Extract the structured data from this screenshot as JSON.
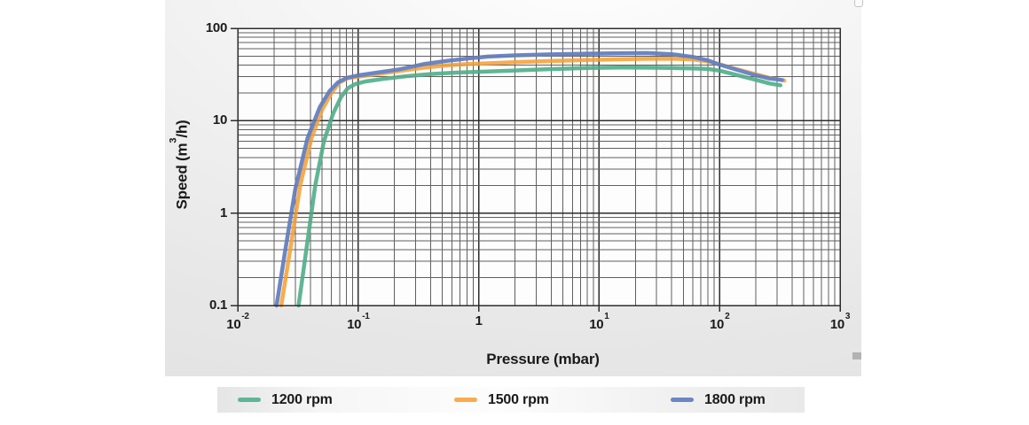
{
  "page": {
    "background": "#ffffff"
  },
  "chart_data": {
    "type": "line",
    "title": "",
    "xlabel": "Pressure (mbar)",
    "ylabel": "Speed (m³/h)",
    "ylabel_parts": {
      "pre": "Speed (m",
      "sup": "3",
      "post": "/h)"
    },
    "x_scale": "log",
    "y_scale": "log",
    "xlim": [
      0.01,
      1000
    ],
    "ylim": [
      0.1,
      100
    ],
    "grid": "log major and minor, dark gray, boxed frame",
    "legend_position": "bottom strip",
    "x_ticks": [
      {
        "base": "10",
        "sup": "-2",
        "value": 0.01
      },
      {
        "base": "10",
        "sup": "-1",
        "value": 0.1
      },
      {
        "base": "1",
        "sup": "",
        "value": 1
      },
      {
        "base": "10",
        "sup": "1",
        "value": 10
      },
      {
        "base": "10",
        "sup": "2",
        "value": 100
      },
      {
        "base": "10",
        "sup": "3",
        "value": 1000
      }
    ],
    "y_ticks": [
      {
        "label": "100",
        "value": 100
      },
      {
        "label": "10",
        "value": 10
      },
      {
        "label": "1",
        "value": 1
      },
      {
        "label": "0.1",
        "value": 0.1
      }
    ],
    "series": [
      {
        "name": "1200 rpm",
        "color": "#5FB694",
        "points": [
          [
            0.032,
            0.1
          ],
          [
            0.038,
            0.5
          ],
          [
            0.044,
            2
          ],
          [
            0.052,
            6
          ],
          [
            0.062,
            12
          ],
          [
            0.072,
            18
          ],
          [
            0.082,
            22.5
          ],
          [
            0.095,
            25
          ],
          [
            0.115,
            26.6
          ],
          [
            0.16,
            28.3
          ],
          [
            0.25,
            30.3
          ],
          [
            0.4,
            32
          ],
          [
            0.65,
            33.2
          ],
          [
            1,
            33.8
          ],
          [
            2,
            35
          ],
          [
            4,
            36.2
          ],
          [
            8,
            37.2
          ],
          [
            15,
            37.6
          ],
          [
            25,
            37.5
          ],
          [
            40,
            37.2
          ],
          [
            60,
            36.9
          ],
          [
            80,
            36.3
          ],
          [
            100,
            34.8
          ],
          [
            140,
            31.2
          ],
          [
            200,
            27.7
          ],
          [
            260,
            25.3
          ],
          [
            320,
            24.2
          ]
        ]
      },
      {
        "name": "1500 rpm",
        "color": "#F8AC4D",
        "points": [
          [
            0.023,
            0.1
          ],
          [
            0.028,
            0.5
          ],
          [
            0.033,
            2
          ],
          [
            0.041,
            6.5
          ],
          [
            0.05,
            13
          ],
          [
            0.06,
            20
          ],
          [
            0.07,
            26
          ],
          [
            0.082,
            28.8
          ],
          [
            0.1,
            30
          ],
          [
            0.14,
            31.8
          ],
          [
            0.22,
            34.5
          ],
          [
            0.35,
            37.5
          ],
          [
            0.55,
            39.8
          ],
          [
            0.8,
            41
          ],
          [
            1.2,
            41.8
          ],
          [
            2,
            43
          ],
          [
            4,
            44.3
          ],
          [
            8,
            45.5
          ],
          [
            15,
            46.3
          ],
          [
            25,
            46.8
          ],
          [
            40,
            47
          ],
          [
            60,
            46.2
          ],
          [
            80,
            43.8
          ],
          [
            100,
            40.8
          ],
          [
            140,
            36
          ],
          [
            200,
            31.8
          ],
          [
            260,
            29
          ],
          [
            345,
            27.2
          ]
        ]
      },
      {
        "name": "1800 rpm",
        "color": "#6C86C3",
        "points": [
          [
            0.021,
            0.1
          ],
          [
            0.025,
            0.42
          ],
          [
            0.03,
            1.8
          ],
          [
            0.038,
            6.5
          ],
          [
            0.048,
            14
          ],
          [
            0.058,
            21
          ],
          [
            0.068,
            26
          ],
          [
            0.08,
            29
          ],
          [
            0.1,
            31
          ],
          [
            0.14,
            33
          ],
          [
            0.22,
            36
          ],
          [
            0.35,
            41
          ],
          [
            0.55,
            44.5
          ],
          [
            0.8,
            47
          ],
          [
            1.2,
            49.5
          ],
          [
            2,
            51
          ],
          [
            4,
            52.3
          ],
          [
            8,
            53.2
          ],
          [
            15,
            53.8
          ],
          [
            25,
            54
          ],
          [
            40,
            52.5
          ],
          [
            60,
            49
          ],
          [
            80,
            45
          ],
          [
            100,
            40.5
          ],
          [
            140,
            35.5
          ],
          [
            200,
            31
          ],
          [
            260,
            28.6
          ],
          [
            330,
            27.6
          ]
        ]
      }
    ],
    "grid_colors": {
      "minor": "#606060",
      "major": "#2d2d2d"
    }
  },
  "artifacts": {
    "scrollbar_thumb_color": "#b3b3b3",
    "scrollbar_notch_color": "#fbfbfb"
  }
}
